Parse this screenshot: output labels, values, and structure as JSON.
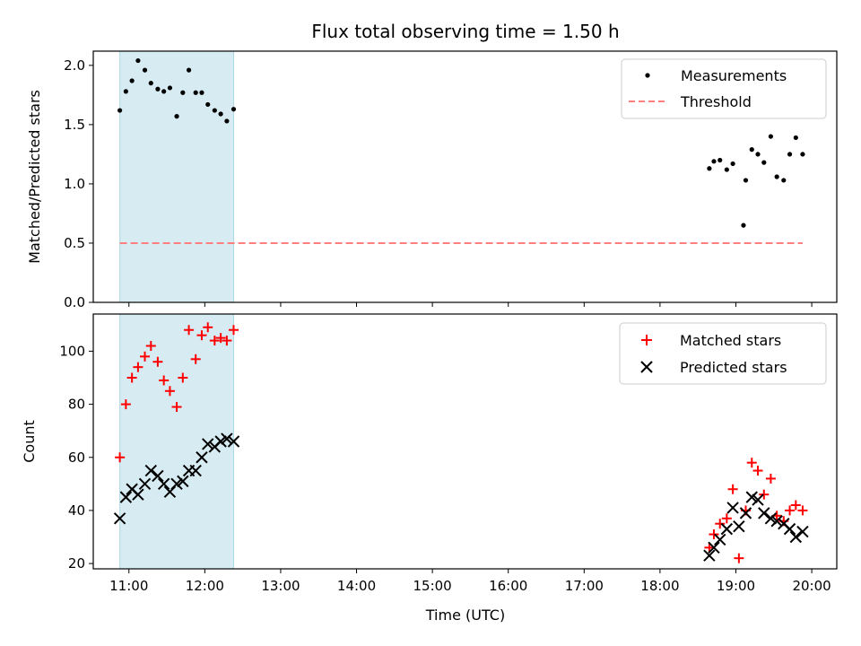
{
  "figure": {
    "title": "Flux total observing time = 1.50 h"
  },
  "chart_data": [
    {
      "type": "scatter",
      "panel": "top",
      "ylabel": "Matched/Predicted stars",
      "xlabel": "",
      "ylim": [
        0,
        2.12
      ],
      "yticks": [
        0.0,
        0.5,
        1.0,
        1.5,
        2.0
      ],
      "ytick_labels": [
        "0.0",
        "0.5",
        "1.0",
        "1.5",
        "2.0"
      ],
      "xlim": [
        10.53,
        20.33
      ],
      "legend_position": "top-right",
      "shaded_interval": {
        "start": 10.88,
        "end": 12.38,
        "color": "#add8e6"
      },
      "series": [
        {
          "name": "Measurements",
          "marker": "dot",
          "color": "#000000",
          "x": [
            10.88,
            10.96,
            11.04,
            11.12,
            11.21,
            11.29,
            11.38,
            11.46,
            11.54,
            11.63,
            11.71,
            11.79,
            11.88,
            11.96,
            12.04,
            12.13,
            12.21,
            12.29,
            12.38,
            18.65,
            18.71,
            18.79,
            18.88,
            18.96,
            19.13,
            19.21,
            19.29,
            19.37,
            19.46,
            19.54,
            19.63,
            19.71,
            19.79,
            19.88
          ],
          "y": [
            1.62,
            1.78,
            1.87,
            2.04,
            1.96,
            1.85,
            1.8,
            1.78,
            1.81,
            1.57,
            1.77,
            1.96,
            1.77,
            1.77,
            1.67,
            1.62,
            1.59,
            1.53,
            1.63,
            1.13,
            1.19,
            1.2,
            1.12,
            1.17,
            1.03,
            1.29,
            1.25,
            1.18,
            1.4,
            1.06,
            1.03,
            1.25,
            1.39,
            1.25
          ]
        },
        {
          "name": "Threshold",
          "line": "dashed",
          "color": "#ff7f7f",
          "x": [
            10.88,
            19.88
          ],
          "y": [
            0.5,
            0.5
          ]
        }
      ],
      "outlier": {
        "x": 19.1,
        "y": 0.65
      }
    },
    {
      "type": "scatter",
      "panel": "bottom",
      "ylabel": "Count",
      "xlabel": "Time (UTC)",
      "ylim": [
        18,
        114
      ],
      "yticks": [
        20,
        40,
        60,
        80,
        100
      ],
      "ytick_labels": [
        "20",
        "40",
        "60",
        "80",
        "100"
      ],
      "xlim": [
        10.53,
        20.33
      ],
      "xticks": [
        11,
        12,
        13,
        14,
        15,
        16,
        17,
        18,
        19,
        20
      ],
      "xtick_labels": [
        "11:00",
        "12:00",
        "13:00",
        "14:00",
        "15:00",
        "16:00",
        "17:00",
        "18:00",
        "19:00",
        "20:00"
      ],
      "legend_position": "top-right",
      "shaded_interval": {
        "start": 10.88,
        "end": 12.38,
        "color": "#add8e6"
      },
      "series": [
        {
          "name": "Matched stars",
          "marker": "plus",
          "color": "#ff0000",
          "x": [
            10.88,
            10.96,
            11.04,
            11.12,
            11.21,
            11.29,
            11.38,
            11.46,
            11.54,
            11.63,
            11.71,
            11.79,
            11.88,
            11.96,
            12.04,
            12.13,
            12.21,
            12.29,
            12.38,
            18.65,
            18.71,
            18.79,
            18.88,
            18.96,
            19.04,
            19.13,
            19.21,
            19.29,
            19.37,
            19.46,
            19.54,
            19.63,
            19.71,
            19.79,
            19.88
          ],
          "y": [
            60,
            80,
            90,
            94,
            98,
            102,
            96,
            89,
            85,
            79,
            90,
            108,
            97,
            106,
            109,
            104,
            105,
            104,
            108,
            26,
            31,
            35,
            37,
            48,
            22,
            40,
            58,
            55,
            46,
            52,
            38,
            36,
            40,
            42,
            40
          ]
        },
        {
          "name": "Predicted stars",
          "marker": "x",
          "color": "#000000",
          "x": [
            10.88,
            10.96,
            11.04,
            11.12,
            11.21,
            11.29,
            11.38,
            11.46,
            11.54,
            11.63,
            11.71,
            11.79,
            11.88,
            11.96,
            12.04,
            12.13,
            12.21,
            12.29,
            12.38,
            18.65,
            18.71,
            18.79,
            18.88,
            18.96,
            19.04,
            19.13,
            19.21,
            19.29,
            19.37,
            19.46,
            19.54,
            19.63,
            19.71,
            19.79,
            19.88
          ],
          "y": [
            37,
            45,
            48,
            46,
            50,
            55,
            53,
            50,
            47,
            50,
            51,
            55,
            55,
            60,
            65,
            64,
            66,
            67,
            66,
            23,
            26,
            29,
            33,
            41,
            34,
            39,
            45,
            44,
            39,
            37,
            36,
            35,
            33,
            30,
            32
          ]
        }
      ]
    }
  ]
}
